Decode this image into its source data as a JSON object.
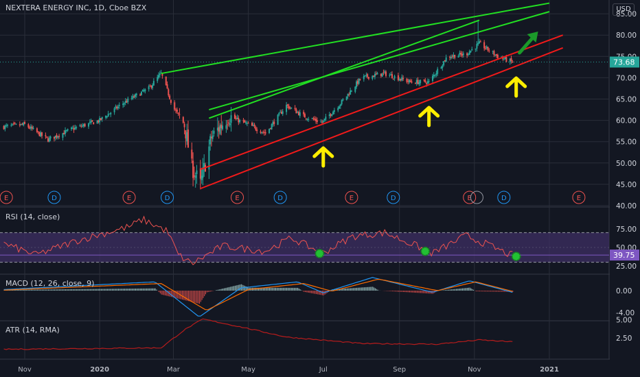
{
  "header": {
    "title": "NEXTERA ENERGY INC, 1D, Cboe BZX",
    "currency": "USD"
  },
  "colors": {
    "background": "#131722",
    "grid": "#2a2e39",
    "candle_up": "#26a69a",
    "candle_down": "#ef5350",
    "trend_green": "#22e022",
    "trend_red": "#f21a1a",
    "arrow_yellow": "#ffee00",
    "rsi_line": "#ef5350",
    "rsi_band": "#3d2f63",
    "macd_line": "#2196f3",
    "signal_line": "#ff6d00",
    "atr_line": "#b71c1c",
    "price_tag": "#26a69a",
    "rsi_tag": "#7e57c2"
  },
  "x_axis": {
    "labels": [
      "Nov",
      "2020",
      "Mar",
      "May",
      "Jul",
      "Sep",
      "Nov",
      "2021"
    ]
  },
  "chart_data": [
    {
      "pane": "price",
      "type": "candlestick",
      "title": "NEXTERA ENERGY INC, 1D, Cboe BZX",
      "y_ticks": [
        40.0,
        45.0,
        50.0,
        55.0,
        60.0,
        65.0,
        70.0,
        75.0,
        80.0,
        85.0
      ],
      "ylim": [
        40,
        87
      ],
      "last_price": "73.68",
      "series_path": [
        {
          "date": "2019-10-15",
          "close": 58.5
        },
        {
          "date": "2019-11-01",
          "close": 59.0
        },
        {
          "date": "2019-11-20",
          "close": 55.5
        },
        {
          "date": "2019-12-10",
          "close": 58.0
        },
        {
          "date": "2020-01-01",
          "close": 60.0
        },
        {
          "date": "2020-01-20",
          "close": 64.0
        },
        {
          "date": "2020-02-10",
          "close": 67.5
        },
        {
          "date": "2020-02-20",
          "close": 71.0
        },
        {
          "date": "2020-03-01",
          "close": 63.0
        },
        {
          "date": "2020-03-10",
          "close": 59.0
        },
        {
          "date": "2020-03-16",
          "close": 49.0
        },
        {
          "date": "2020-03-23",
          "close": 45.0
        },
        {
          "date": "2020-04-01",
          "close": 56.0
        },
        {
          "date": "2020-04-15",
          "close": 61.0
        },
        {
          "date": "2020-05-01",
          "close": 59.0
        },
        {
          "date": "2020-05-15",
          "close": 57.0
        },
        {
          "date": "2020-06-01",
          "close": 63.5
        },
        {
          "date": "2020-06-15",
          "close": 61.0
        },
        {
          "date": "2020-06-30",
          "close": 59.5
        },
        {
          "date": "2020-07-15",
          "close": 64.0
        },
        {
          "date": "2020-08-01",
          "close": 70.0
        },
        {
          "date": "2020-08-20",
          "close": 71.0
        },
        {
          "date": "2020-09-10",
          "close": 69.0
        },
        {
          "date": "2020-09-25",
          "close": 69.0
        },
        {
          "date": "2020-10-10",
          "close": 75.0
        },
        {
          "date": "2020-10-25",
          "close": 75.5
        },
        {
          "date": "2020-11-05",
          "close": 78.0
        },
        {
          "date": "2020-11-20",
          "close": 75.0
        },
        {
          "date": "2020-12-02",
          "close": 73.68
        }
      ],
      "spike": {
        "date": "2020-11-04",
        "high": 83.5
      },
      "trendlines": [
        {
          "color": "green",
          "from": [
            "2020-02-20",
            71.0
          ],
          "to": [
            "2021-01-01",
            87.5
          ]
        },
        {
          "color": "green",
          "from": [
            "2020-03-30",
            62.5
          ],
          "to": [
            "2021-01-01",
            85.5
          ]
        },
        {
          "color": "green",
          "from": [
            "2020-03-30",
            60.5
          ],
          "to": [
            "2020-11-05",
            83.5
          ]
        },
        {
          "color": "red",
          "from": [
            "2020-03-23",
            48.5
          ],
          "to": [
            "2021-01-12",
            80.0
          ]
        },
        {
          "color": "red",
          "from": [
            "2020-03-23",
            44.0
          ],
          "to": [
            "2021-01-12",
            77.0
          ]
        }
      ],
      "arrows_up": [
        "2020-07-01",
        "2020-09-25",
        "2020-12-05"
      ],
      "arrow_green_at": "2020-12-15",
      "event_markers": [
        {
          "label": "E",
          "date": "2019-10-17"
        },
        {
          "label": "D",
          "date": "2019-11-25"
        },
        {
          "label": "E",
          "date": "2020-01-25"
        },
        {
          "label": "D",
          "date": "2020-02-25"
        },
        {
          "label": "E",
          "date": "2020-04-22"
        },
        {
          "label": "D",
          "date": "2020-05-27"
        },
        {
          "label": "E",
          "date": "2020-07-24"
        },
        {
          "label": "D",
          "date": "2020-08-27"
        },
        {
          "label": "E",
          "date": "2020-10-28"
        },
        {
          "label": "D",
          "date": "2020-11-25"
        },
        {
          "label": "E",
          "date": "2021-01-25"
        }
      ]
    },
    {
      "pane": "rsi",
      "type": "line",
      "title": "RSI (14, close)",
      "y_ticks": [
        25.0,
        50.0,
        75.0
      ],
      "band": [
        30,
        70
      ],
      "last_value": "39.75",
      "series_path": [
        {
          "date": "2019-10-15",
          "value": 55
        },
        {
          "date": "2019-11-10",
          "value": 40
        },
        {
          "date": "2019-12-15",
          "value": 60
        },
        {
          "date": "2020-01-25",
          "value": 78
        },
        {
          "date": "2020-02-05",
          "value": 88
        },
        {
          "date": "2020-02-25",
          "value": 72
        },
        {
          "date": "2020-03-05",
          "value": 40
        },
        {
          "date": "2020-03-16",
          "value": 28
        },
        {
          "date": "2020-04-10",
          "value": 52
        },
        {
          "date": "2020-05-15",
          "value": 45
        },
        {
          "date": "2020-06-05",
          "value": 63
        },
        {
          "date": "2020-06-30",
          "value": 42
        },
        {
          "date": "2020-07-25",
          "value": 65
        },
        {
          "date": "2020-08-20",
          "value": 70
        },
        {
          "date": "2020-09-15",
          "value": 52
        },
        {
          "date": "2020-09-28",
          "value": 42
        },
        {
          "date": "2020-10-25",
          "value": 66
        },
        {
          "date": "2020-11-10",
          "value": 55
        },
        {
          "date": "2020-11-30",
          "value": 40
        },
        {
          "date": "2020-12-05",
          "value": 39.75
        }
      ],
      "markers": [
        "2020-06-28",
        "2020-09-22",
        "2020-12-05"
      ]
    },
    {
      "pane": "macd",
      "type": "line",
      "title": "MACD (12, 26, close, 9)",
      "y_ticks": [
        -4.0,
        0.0
      ],
      "series": [
        {
          "name": "macd",
          "path": [
            {
              "date": "2019-10-15",
              "value": 0.2
            },
            {
              "date": "2020-02-15",
              "value": 1.6
            },
            {
              "date": "2020-03-22",
              "value": -4.8
            },
            {
              "date": "2020-04-25",
              "value": 0.5
            },
            {
              "date": "2020-06-10",
              "value": 1.6
            },
            {
              "date": "2020-07-01",
              "value": -0.4
            },
            {
              "date": "2020-08-10",
              "value": 2.4
            },
            {
              "date": "2020-09-28",
              "value": -0.3
            },
            {
              "date": "2020-10-28",
              "value": 1.8
            },
            {
              "date": "2020-12-05",
              "value": -0.5
            }
          ]
        },
        {
          "name": "signal",
          "path": [
            {
              "date": "2019-10-15",
              "value": 0.1
            },
            {
              "date": "2020-02-20",
              "value": 1.3
            },
            {
              "date": "2020-03-28",
              "value": -3.6
            },
            {
              "date": "2020-05-01",
              "value": 0.2
            },
            {
              "date": "2020-06-15",
              "value": 1.3
            },
            {
              "date": "2020-07-08",
              "value": -0.1
            },
            {
              "date": "2020-08-15",
              "value": 2.1
            },
            {
              "date": "2020-10-02",
              "value": 0.0
            },
            {
              "date": "2020-11-02",
              "value": 1.6
            },
            {
              "date": "2020-12-05",
              "value": -0.3
            }
          ]
        }
      ]
    },
    {
      "pane": "atr",
      "type": "line",
      "title": "ATR (14, RMA)",
      "y_ticks": [
        2.5,
        5.0
      ],
      "series_path": [
        {
          "date": "2019-10-15",
          "value": 0.9
        },
        {
          "date": "2020-02-20",
          "value": 1.1
        },
        {
          "date": "2020-03-10",
          "value": 3.6
        },
        {
          "date": "2020-03-25",
          "value": 5.1
        },
        {
          "date": "2020-04-25",
          "value": 4.0
        },
        {
          "date": "2020-06-01",
          "value": 2.6
        },
        {
          "date": "2020-08-01",
          "value": 1.7
        },
        {
          "date": "2020-10-01",
          "value": 1.6
        },
        {
          "date": "2020-11-05",
          "value": 2.2
        },
        {
          "date": "2020-12-05",
          "value": 1.9
        }
      ]
    }
  ]
}
